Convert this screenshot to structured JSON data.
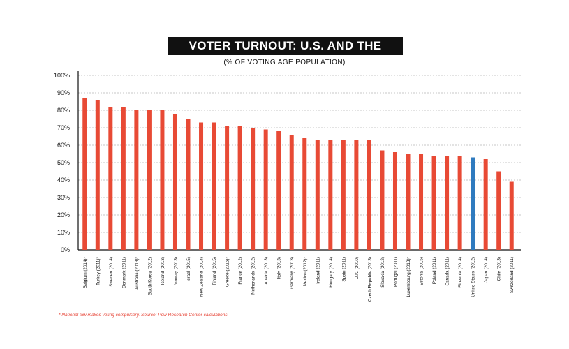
{
  "title": "VOTER TURNOUT: U.S. AND THE WORLD",
  "subtitle": "(% OF VOTING AGE POPULATION)",
  "footnote": "* National law makes voting compulsory. Source: Pew Research Center calculations",
  "colors": {
    "default_bar": "#e84a35",
    "highlight_bar": "#2f7bbf"
  },
  "chart_data": {
    "type": "bar",
    "title": "VOTER TURNOUT: U.S. AND THE WORLD",
    "subtitle": "(% OF VOTING AGE POPULATION)",
    "ylim": [
      0,
      100
    ],
    "yticks": [
      "0%",
      "10%",
      "20%",
      "30%",
      "40%",
      "50%",
      "60%",
      "70%",
      "80%",
      "90%",
      "100%"
    ],
    "grid": true,
    "highlight": "United States (2012)",
    "categories": [
      "Belgium (2014)*",
      "Turkey (2011)*",
      "Sweden (2014)",
      "Denmark (2011)",
      "Australia (2013)*",
      "South Korea (2012)",
      "Iceland (2013)",
      "Norway (2013)",
      "Israel (2015)",
      "New Zealand (2014)",
      "Finland (2015)",
      "Greece (2015)*",
      "France (2012)",
      "Netherlands (2012)",
      "Austria (2013)",
      "Italy (2013)",
      "Germany (2013)",
      "Mexico (2012)*",
      "Ireland (2011)",
      "Hungary (2014)",
      "Spain (2011)",
      "U.K. (2010)",
      "Czech Republic (2013)",
      "Slovakia (2012)",
      "Portugal (2011)",
      "Luxembourg (2013)*",
      "Estonia (2015)",
      "Poland (2011)",
      "Canada (2011)",
      "Slovenia (2014)",
      "United States (2012)",
      "Japan (2014)",
      "Chile (2013)",
      "Switzerland (2011)"
    ],
    "values": [
      87,
      86,
      82,
      82,
      80,
      80,
      80,
      78,
      75,
      73,
      73,
      71,
      71,
      70,
      69,
      68,
      66,
      64,
      63,
      63,
      63,
      63,
      63,
      57,
      56,
      55,
      55,
      54,
      54,
      54,
      53,
      52,
      45,
      39
    ]
  }
}
